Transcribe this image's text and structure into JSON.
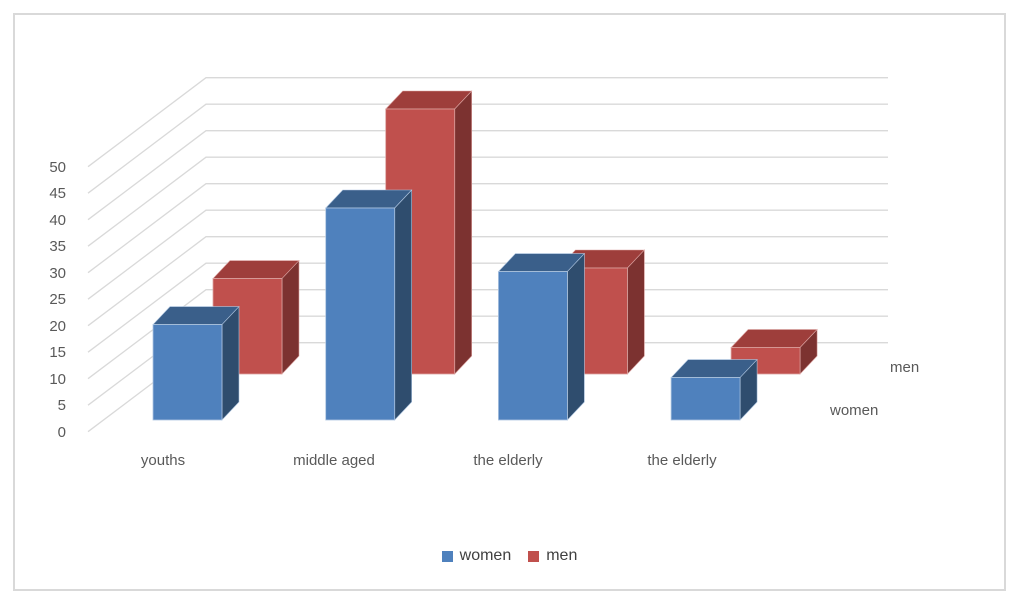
{
  "chart_data": {
    "type": "bar",
    "variant": "3d-column",
    "title": "",
    "categories": [
      "youths",
      "middle aged",
      "the elderly",
      "the elderly"
    ],
    "series": [
      {
        "name": "women",
        "values": [
          18,
          40,
          28,
          8
        ],
        "color": "#4F81BD",
        "color_top": "#3A5F8A",
        "color_side": "#2F4D6E",
        "color_edge": "#AFC6E1"
      },
      {
        "name": "men",
        "values": [
          18,
          50,
          20,
          5
        ],
        "color": "#C0504D",
        "color_top": "#9E3E3B",
        "color_side": "#7C3230",
        "color_edge": "#DCA3A1"
      }
    ],
    "ylim": [
      0,
      50
    ],
    "ytick_step": 5,
    "yticks": [
      0,
      5,
      10,
      15,
      20,
      25,
      30,
      35,
      40,
      45,
      50
    ],
    "grid": true,
    "legend_position": "bottom",
    "row_labels_right": [
      "men",
      "women"
    ],
    "colors": {
      "gridline": "#D9D9D9",
      "frame_border": "#D9D9D9",
      "axis_text": "#595959",
      "legend_text": "#404040",
      "background": "#FFFFFF"
    }
  }
}
